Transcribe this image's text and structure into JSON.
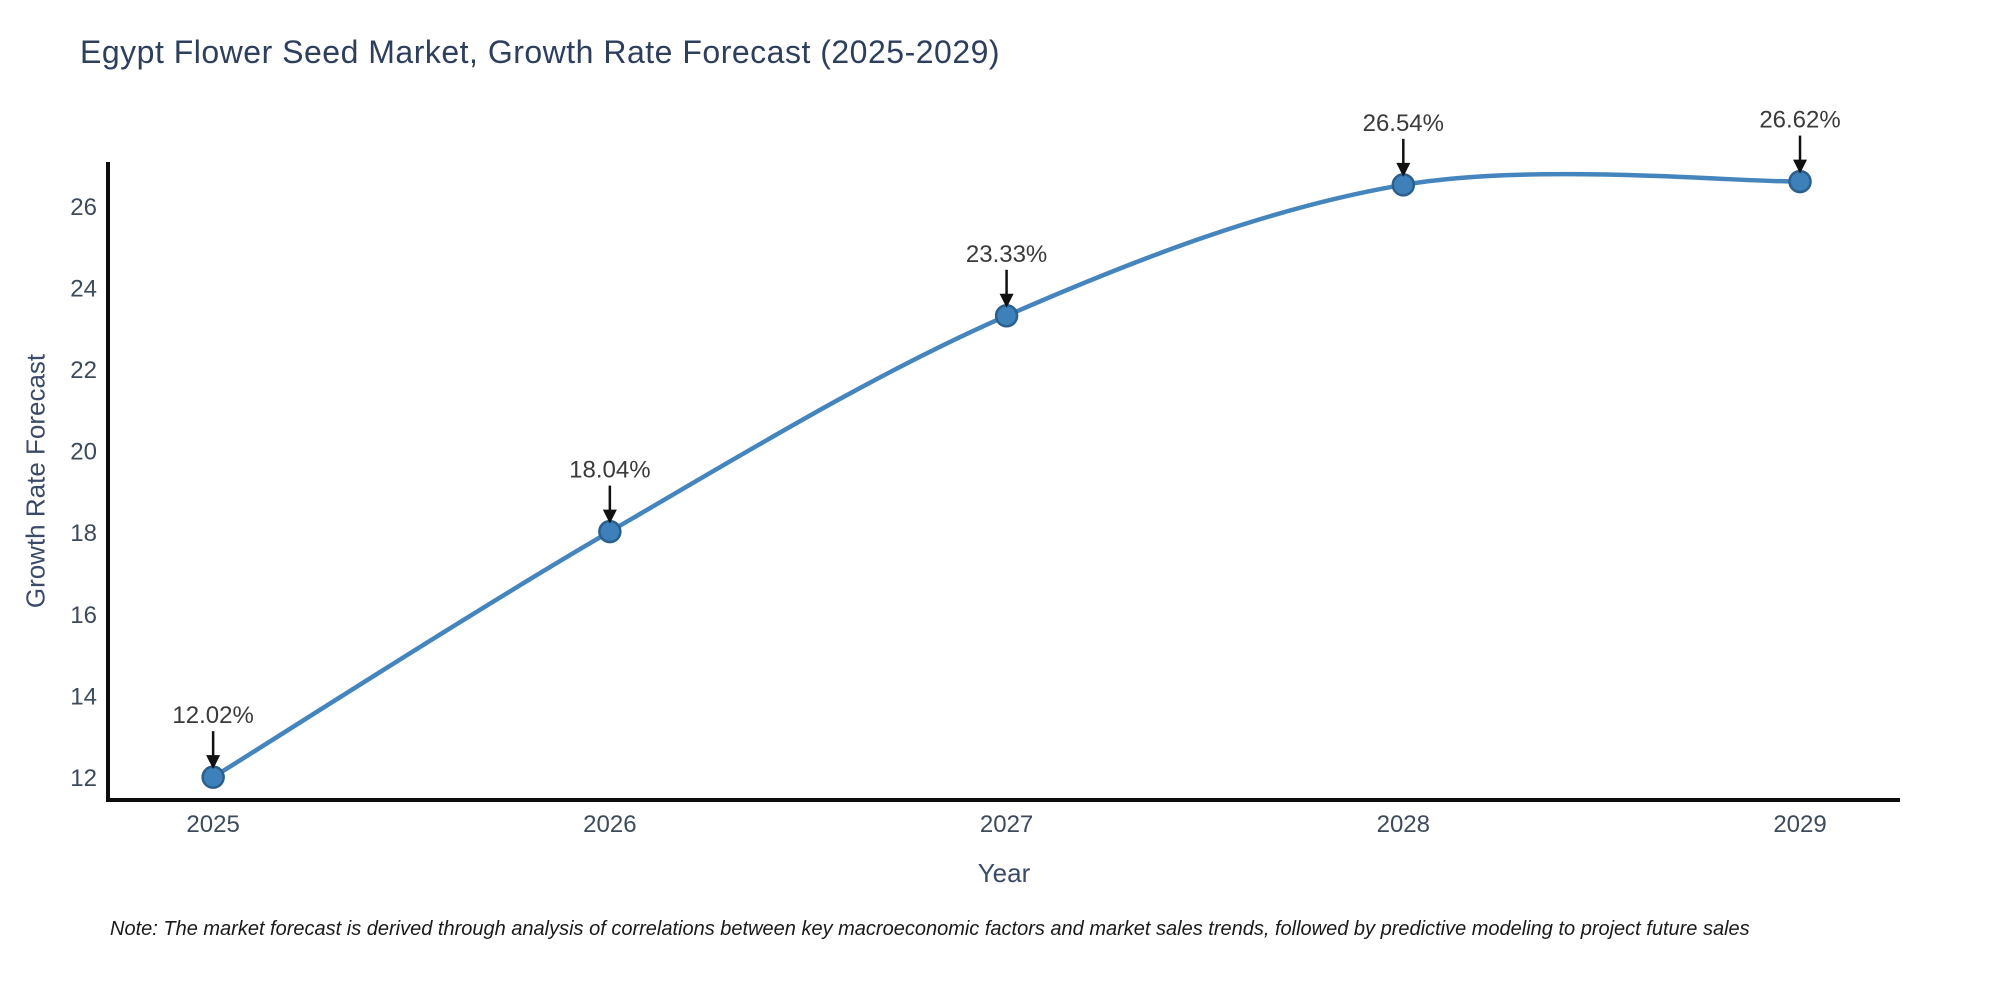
{
  "chart": {
    "title": "Egypt Flower Seed Market, Growth Rate Forecast (2025-2029)",
    "xlabel": "Year",
    "ylabel": "Growth Rate Forecast",
    "note": "Note: The market forecast is derived through analysis of correlations between key macroeconomic factors and market sales trends, followed by predictive modeling to project future sales"
  },
  "chart_data": {
    "type": "line",
    "title": "Egypt Flower Seed Market, Growth Rate Forecast (2025-2029)",
    "xlabel": "Year",
    "ylabel": "Growth Rate Forecast",
    "x": [
      2025,
      2026,
      2027,
      2028,
      2029
    ],
    "values": [
      12.02,
      18.04,
      23.33,
      26.54,
      26.62
    ],
    "point_labels": [
      "12.02%",
      "18.04%",
      "23.33%",
      "26.54%",
      "26.62%"
    ],
    "x_tick_labels": [
      "2025",
      "2026",
      "2027",
      "2028",
      "2029"
    ],
    "y_ticks": [
      12,
      14,
      16,
      18,
      20,
      22,
      24,
      26
    ],
    "y_tick_labels": [
      "12",
      "14",
      "16",
      "18",
      "20",
      "22",
      "24",
      "26"
    ],
    "xlim": [
      2024.735,
      2029.252
    ],
    "ylim": [
      11.46,
      27.1
    ],
    "grid": false,
    "legend": "none",
    "smooth": true,
    "colors": {
      "line": "#4585bd",
      "marker_fill": "#3d80ba",
      "marker_edge": "#2b5f8e",
      "annotation_text": "#3a3a3a",
      "arrow": "#111111",
      "spine": "#0d0d0d",
      "tick_label": "#3d4a5c",
      "axis_title": "#3b4a68",
      "title": "#2e3f5e"
    }
  }
}
